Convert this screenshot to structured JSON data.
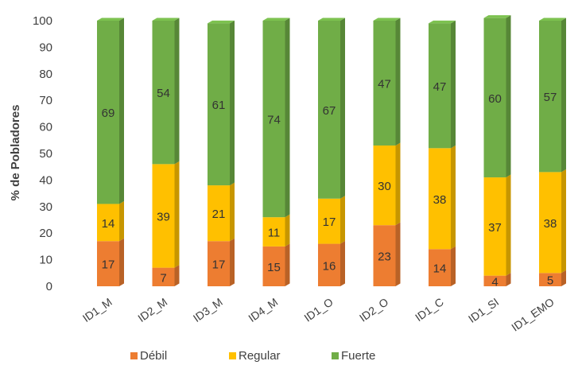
{
  "chart_data": {
    "type": "bar",
    "stacked": true,
    "three_d": true,
    "categories": [
      "ID1_M",
      "ID2_M",
      "ID3_M",
      "ID4_M",
      "ID1_O",
      "ID2_O",
      "ID1_C",
      "ID1_SI",
      "ID1_EMO"
    ],
    "series": [
      {
        "name": "Débil",
        "color": "#ED7D31",
        "values": [
          17,
          7,
          17,
          15,
          16,
          23,
          14,
          4,
          5
        ]
      },
      {
        "name": "Regular",
        "color": "#FFC000",
        "values": [
          14,
          39,
          21,
          11,
          17,
          30,
          38,
          37,
          38
        ]
      },
      {
        "name": "Fuerte",
        "color": "#70AD47",
        "values": [
          69,
          54,
          61,
          74,
          67,
          47,
          47,
          60,
          57
        ]
      }
    ],
    "ylabel": "% de Pobladores",
    "xlabel": "",
    "ylim": [
      0,
      100
    ],
    "yticks": [
      0,
      10,
      20,
      30,
      40,
      50,
      60,
      70,
      80,
      90,
      100
    ],
    "grid": false,
    "legend_position": "bottom",
    "data_labels": true
  }
}
